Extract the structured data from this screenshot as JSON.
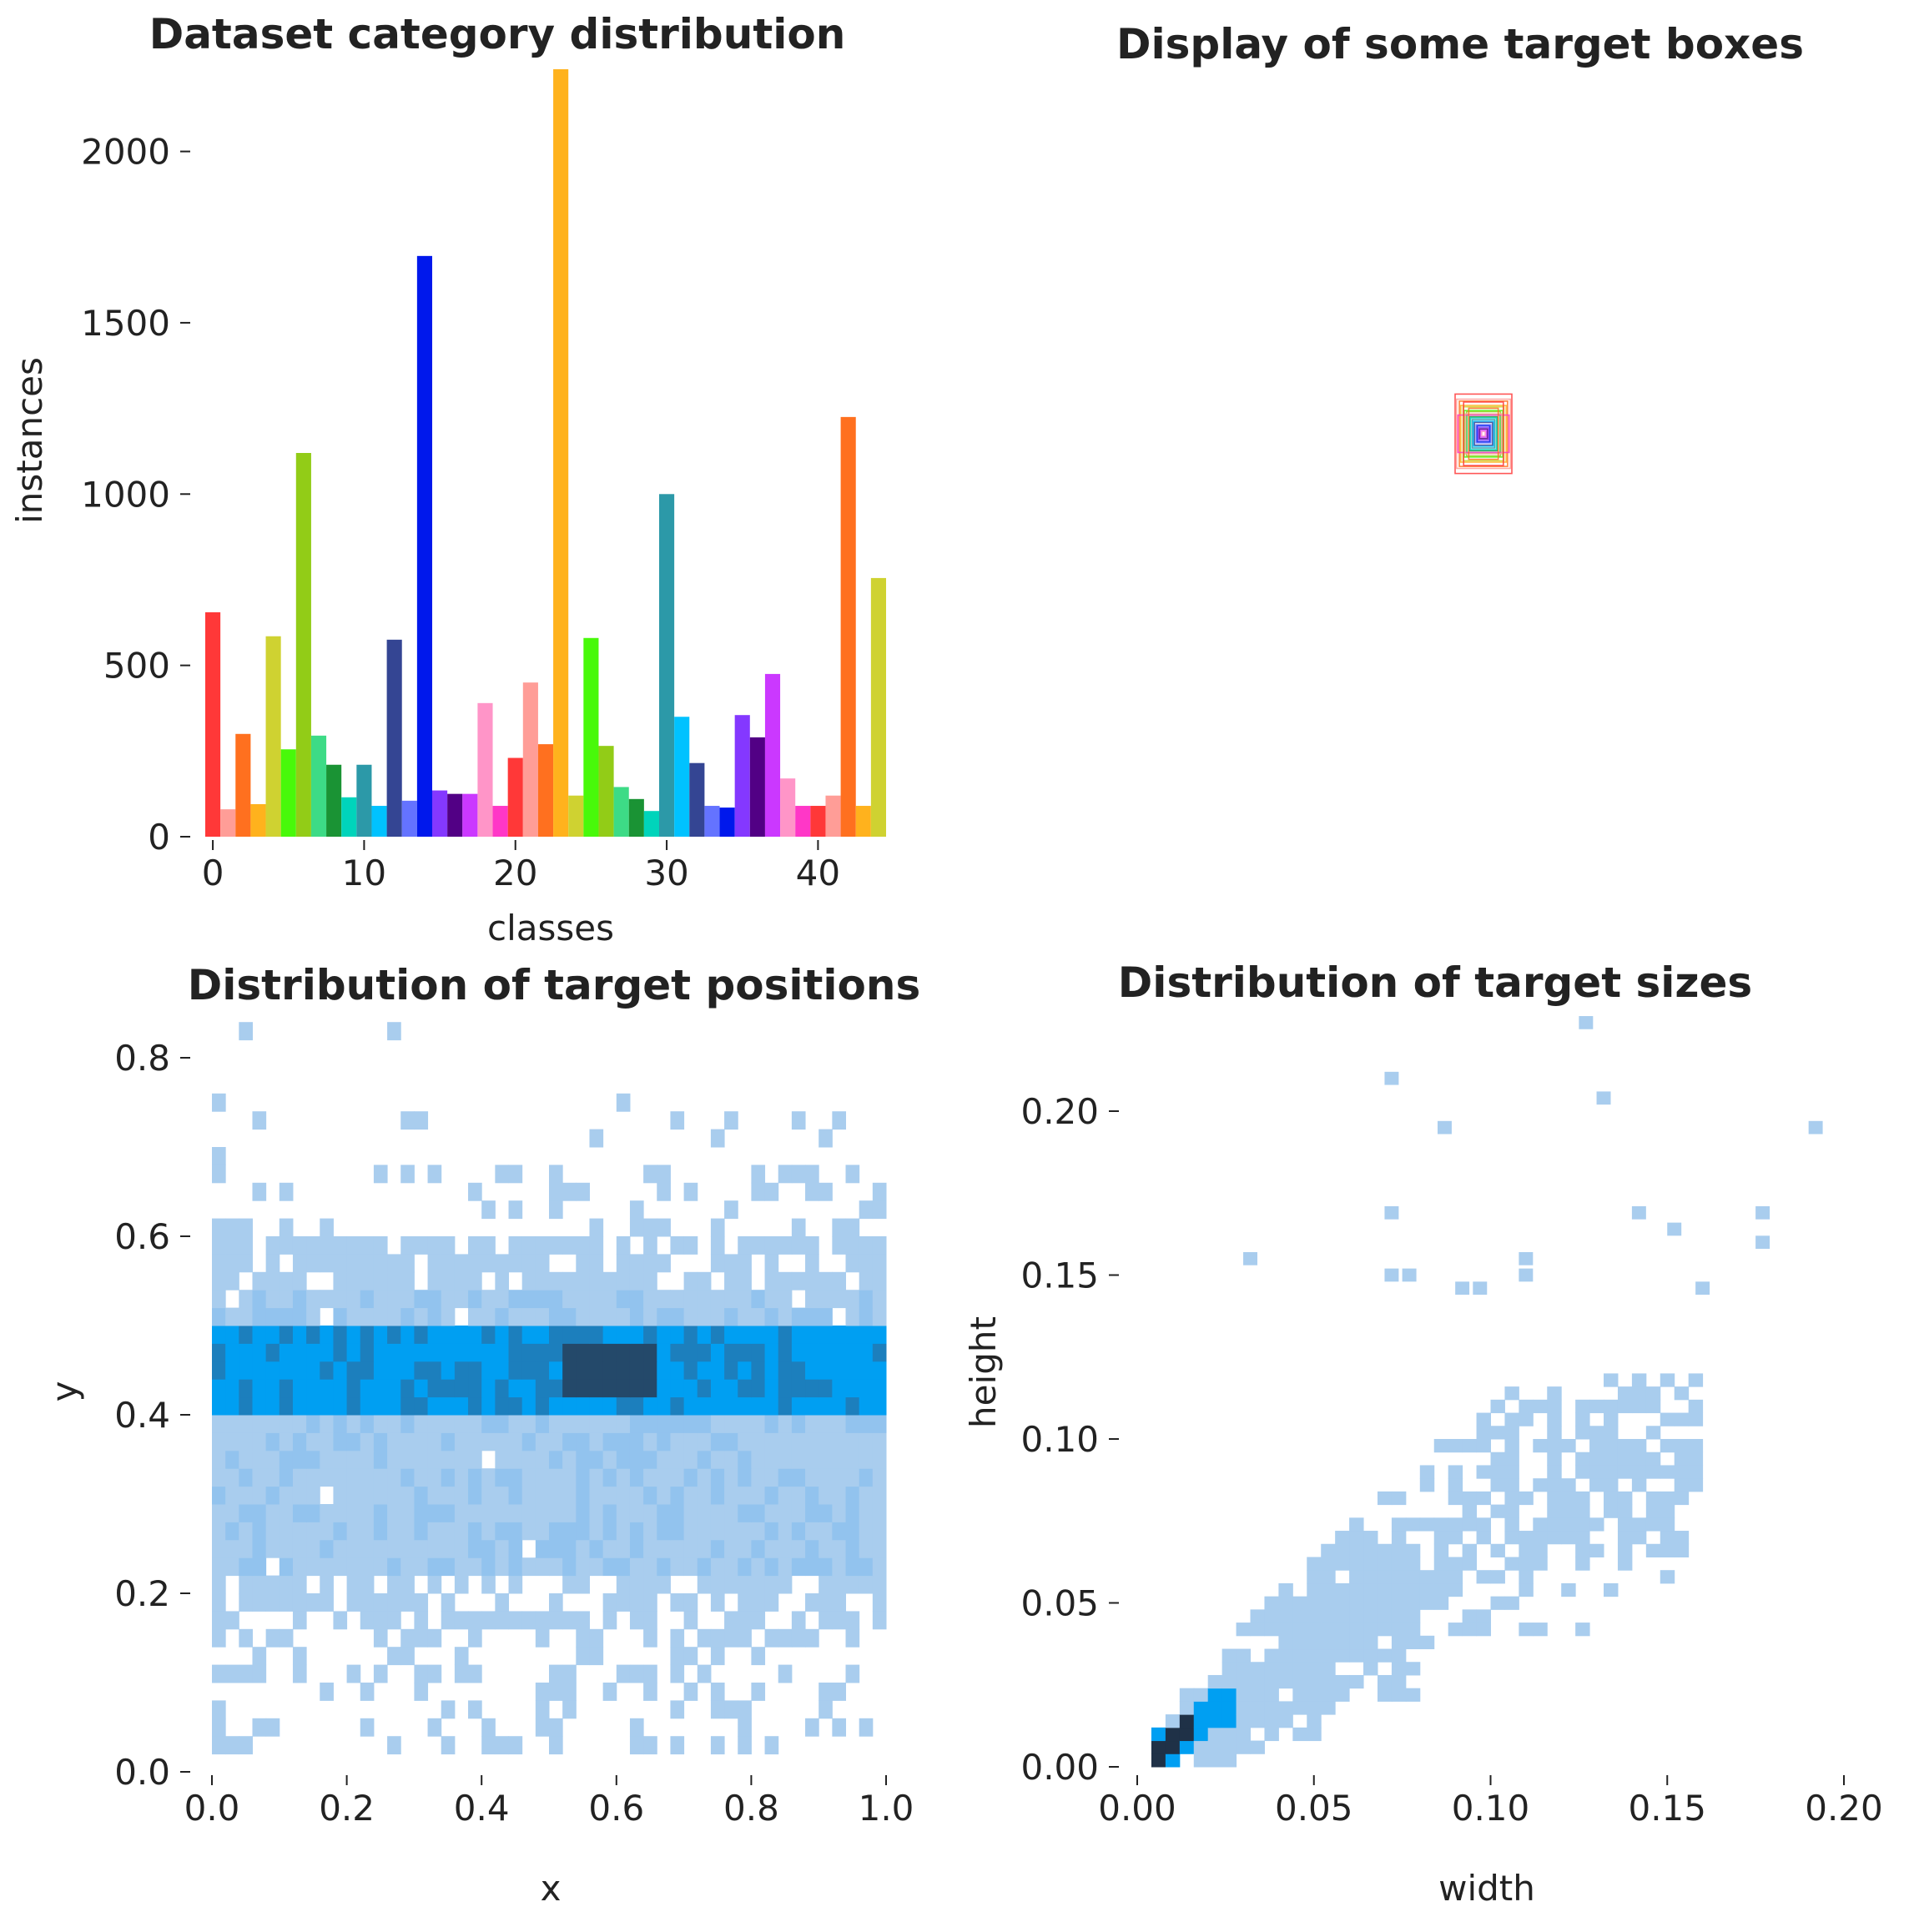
{
  "colors": {
    "light": "#a9cdee",
    "mid": "#92c3ee",
    "blue": "#009ff2",
    "strong": "#1c7fbd",
    "dark": "#24496a",
    "darkest": "#1f3147",
    "box_palette": [
      "#ff3838",
      "#ff9d97",
      "#ff701f",
      "#ffb21d",
      "#cfd231",
      "#48f90a",
      "#92cc17",
      "#3ddb86",
      "#1a9334",
      "#00d4bb",
      "#2c99a8",
      "#00c2ff",
      "#344593",
      "#6473ff",
      "#0018ec",
      "#8438ff",
      "#520085",
      "#cb38ff",
      "#ff95c8",
      "#ff37c7"
    ]
  },
  "chart_data": [
    {
      "type": "bar",
      "title": "Dataset category distribution",
      "xlabel": "classes",
      "ylabel": "instances",
      "xlim": [
        -0.5,
        44.5
      ],
      "ylim": [
        0,
        2240
      ],
      "xticks": [
        0,
        10,
        20,
        30,
        40
      ],
      "yticks": [
        0,
        500,
        1000,
        1500,
        2000
      ],
      "grid": false,
      "categories": [
        0,
        1,
        2,
        3,
        4,
        5,
        6,
        7,
        8,
        9,
        10,
        11,
        12,
        13,
        14,
        15,
        16,
        17,
        18,
        19,
        20,
        21,
        22,
        23,
        24,
        25,
        26,
        27,
        28,
        29,
        30,
        31,
        32,
        33,
        34,
        35,
        36,
        37,
        38,
        39,
        40,
        41,
        42,
        43,
        44
      ],
      "values": [
        655,
        80,
        300,
        95,
        585,
        255,
        1120,
        295,
        210,
        115,
        210,
        90,
        575,
        105,
        1695,
        135,
        125,
        125,
        390,
        90,
        230,
        450,
        270,
        2240,
        120,
        580,
        265,
        145,
        110,
        75,
        1000,
        350,
        215,
        90,
        85,
        355,
        290,
        475,
        170,
        90,
        90,
        120,
        1225,
        90,
        755
      ],
      "colors": [
        "#ff3838",
        "#ff9d97",
        "#ff701f",
        "#ffb21d",
        "#cfd231",
        "#48f90a",
        "#92cc17",
        "#3ddb86",
        "#1a9334",
        "#00d4bb",
        "#2c99a8",
        "#00c2ff",
        "#344593",
        "#6473ff",
        "#0018ec",
        "#8438ff",
        "#520085",
        "#cb38ff",
        "#ff95c8",
        "#ff37c7",
        "#ff3838",
        "#ff9d97",
        "#ff701f",
        "#ffb21d",
        "#cfd231",
        "#48f90a",
        "#92cc17",
        "#3ddb86",
        "#1a9334",
        "#00d4bb",
        "#2c99a8",
        "#00c2ff",
        "#344593",
        "#6473ff",
        "#0018ec",
        "#8438ff",
        "#520085",
        "#cb38ff",
        "#ff95c8",
        "#ff37c7",
        "#ff3838",
        "#ff9d97",
        "#ff701f",
        "#ffb21d",
        "#cfd231"
      ]
    },
    {
      "type": "boxes",
      "title": "Display of some target boxes",
      "center": [
        0.5,
        0.5
      ],
      "boxes": [
        {
          "w": 0.1,
          "h": 0.14
        },
        {
          "w": 0.095,
          "h": 0.122
        },
        {
          "w": 0.085,
          "h": 0.115
        },
        {
          "w": 0.08,
          "h": 0.1
        },
        {
          "w": 0.072,
          "h": 0.095
        },
        {
          "w": 0.068,
          "h": 0.082
        },
        {
          "w": 0.06,
          "h": 0.078
        },
        {
          "w": 0.058,
          "h": 0.068
        },
        {
          "w": 0.05,
          "h": 0.06
        },
        {
          "w": 0.046,
          "h": 0.056
        },
        {
          "w": 0.04,
          "h": 0.05
        },
        {
          "w": 0.036,
          "h": 0.044
        },
        {
          "w": 0.032,
          "h": 0.04
        },
        {
          "w": 0.026,
          "h": 0.032
        },
        {
          "w": 0.022,
          "h": 0.028
        },
        {
          "w": 0.018,
          "h": 0.022
        },
        {
          "w": 0.014,
          "h": 0.017
        },
        {
          "w": 0.01,
          "h": 0.012
        },
        {
          "w": 0.006,
          "h": 0.008
        },
        {
          "w": 0.09,
          "h": 0.066
        },
        {
          "w": 0.07,
          "h": 0.112
        },
        {
          "w": 0.064,
          "h": 0.07
        },
        {
          "w": 0.052,
          "h": 0.09
        }
      ]
    },
    {
      "type": "heatmap",
      "title": "Distribution of target positions",
      "xlabel": "x",
      "ylabel": "y",
      "xlim": [
        0,
        1
      ],
      "ylim": [
        0,
        0.85
      ],
      "xticks": [
        0.0,
        0.2,
        0.4,
        0.6,
        0.8,
        1.0
      ],
      "yticks": [
        0.0,
        0.2,
        0.4,
        0.6,
        0.8
      ],
      "xbins": 50,
      "ybin": 0.02,
      "bands": [
        {
          "y": [
            0.02,
            0.16
          ],
          "density": 0.3,
          "level": 1
        },
        {
          "y": [
            0.16,
            0.22
          ],
          "density": 0.55,
          "level": 1
        },
        {
          "y": [
            0.22,
            0.4
          ],
          "density": 0.98,
          "level": 2
        },
        {
          "y": [
            0.4,
            0.5
          ],
          "density": 1.0,
          "level": 3
        },
        {
          "y": [
            0.5,
            0.54
          ],
          "density": 0.95,
          "level": 2
        },
        {
          "y": [
            0.54,
            0.6
          ],
          "density": 0.75,
          "level": 1
        },
        {
          "y": [
            0.6,
            0.68
          ],
          "density": 0.35,
          "level": 1
        },
        {
          "y": [
            0.68,
            0.76
          ],
          "density": 0.08,
          "level": 1
        },
        {
          "y": [
            0.82,
            0.84
          ],
          "density": 0.04,
          "level": 1
        }
      ],
      "hotspot": {
        "x": [
          0.36,
          0.86
        ],
        "y": [
          0.42,
          0.48
        ],
        "peak_x": [
          0.52,
          0.66
        ]
      }
    },
    {
      "type": "heatmap",
      "title": "Distribution of target sizes",
      "xlabel": "width",
      "ylabel": "height",
      "xlim": [
        0,
        0.2
      ],
      "ylim": [
        0,
        0.225
      ],
      "xticks": [
        0.0,
        0.05,
        0.1,
        0.15,
        0.2
      ],
      "yticks": [
        0.0,
        0.05,
        0.1,
        0.15,
        0.2
      ],
      "bin": 0.004,
      "trend": {
        "slope": 0.72,
        "intercept": 0.0
      },
      "outliers": [
        [
          0.07,
          0.208
        ],
        [
          0.125,
          0.225
        ],
        [
          0.13,
          0.202
        ],
        [
          0.085,
          0.193
        ],
        [
          0.19,
          0.193
        ],
        [
          0.07,
          0.167
        ],
        [
          0.14,
          0.167
        ],
        [
          0.175,
          0.167
        ],
        [
          0.15,
          0.162
        ],
        [
          0.175,
          0.158
        ],
        [
          0.03,
          0.153
        ],
        [
          0.07,
          0.148
        ],
        [
          0.075,
          0.148
        ],
        [
          0.108,
          0.148
        ],
        [
          0.108,
          0.153
        ],
        [
          0.09,
          0.144
        ],
        [
          0.095,
          0.144
        ],
        [
          0.158,
          0.144
        ]
      ]
    }
  ]
}
